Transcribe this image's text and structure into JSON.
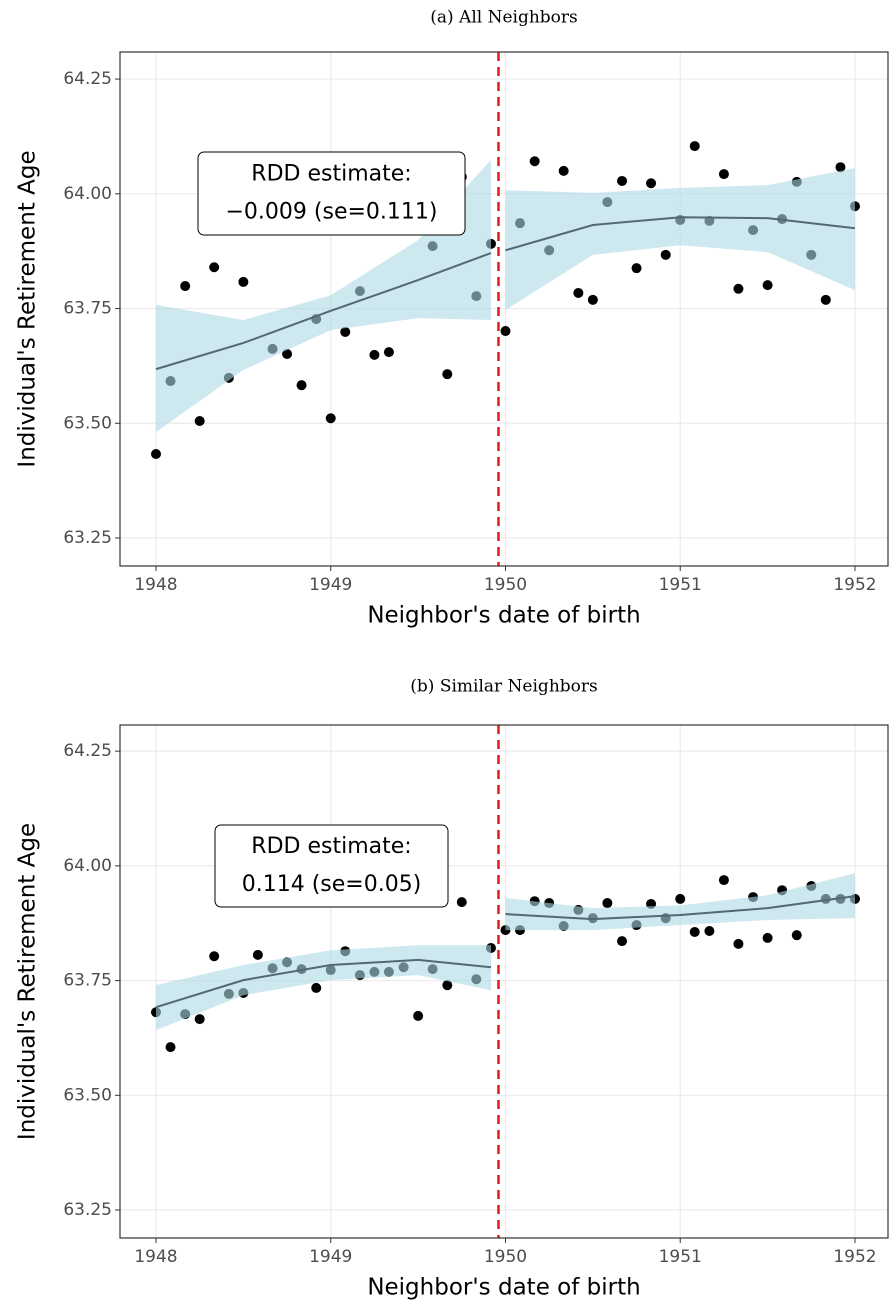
{
  "chart_data": [
    {
      "type": "scatter",
      "title": "(a) All Neighbors",
      "x_label": "Neighbor's date of birth",
      "y_label": "Individual's Retirement Age",
      "xlim": [
        1947.794,
        1952.189
      ],
      "ylim": [
        63.189,
        64.309
      ],
      "xticks": [
        1948,
        1949,
        1950,
        1951,
        1952
      ],
      "yticks": [
        63.25,
        {
          "value": 63.5,
          "label": "63.50"
        },
        {
          "value": 63.75,
          "label": "63.75"
        },
        {
          "value": 64,
          "label": "64.00"
        },
        64.25
      ],
      "grid": true,
      "cutoff": 1949.96,
      "cutoff_color": "#e41a1c",
      "annotation": [
        "RDD estimate:",
        "−0.009 (se=0.111)"
      ],
      "series": [
        {
          "color": "#000000",
          "x": [
            1948,
            1948.083,
            1948.167,
            1948.25,
            1948.333,
            1948.417,
            1948.5,
            1948.667,
            1948.75,
            1948.833,
            1948.917,
            1949,
            1949.083,
            1949.167,
            1949.25,
            1949.333,
            1949.583,
            1949.667,
            1949.75,
            1949.833,
            1949.917,
            1950,
            1950.083,
            1950.167,
            1950.25,
            1950.333,
            1950.417,
            1950.5,
            1950.583,
            1950.667,
            1950.75,
            1950.833,
            1950.917,
            1951,
            1951.083,
            1951.167,
            1951.25,
            1951.333,
            1951.417,
            1951.5,
            1951.583,
            1951.667,
            1951.75,
            1951.833,
            1951.917,
            1952
          ],
          "values": [
            63.433,
            63.592,
            63.799,
            63.505,
            63.84,
            63.599,
            63.808,
            63.662,
            63.651,
            63.583,
            63.727,
            63.511,
            63.699,
            63.788,
            63.649,
            63.655,
            63.886,
            63.607,
            64.037,
            63.777,
            63.891,
            63.701,
            63.936,
            64.071,
            63.877,
            64.05,
            63.784,
            63.769,
            63.982,
            64.028,
            63.838,
            64.023,
            63.867,
            63.943,
            64.104,
            63.941,
            64.043,
            63.793,
            63.921,
            63.801,
            63.945,
            64.026,
            63.867,
            63.769,
            64.058,
            63.973
          ]
        }
      ],
      "fits": [
        {
          "color": "#536872",
          "band_color": "#add8e6",
          "x": [
            1948,
            1948.5,
            1949,
            1949.5,
            1949.917
          ],
          "values": [
            63.618,
            63.675,
            63.745,
            63.812,
            63.871
          ],
          "upper": [
            63.758,
            63.725,
            63.779,
            63.899,
            64.074
          ],
          "lower": [
            63.481,
            63.616,
            63.703,
            63.729,
            63.725
          ]
        },
        {
          "color": "#536872",
          "band_color": "#add8e6",
          "x": [
            1950,
            1950.5,
            1951,
            1951.5,
            1952
          ],
          "values": [
            63.877,
            63.932,
            63.949,
            63.947,
            63.925
          ],
          "upper": [
            64.008,
            64.002,
            64.013,
            64.019,
            64.056
          ],
          "lower": [
            63.747,
            63.867,
            63.888,
            63.873,
            63.79
          ]
        }
      ]
    },
    {
      "type": "scatter",
      "title": "(b) Similar Neighbors",
      "x_label": "Neighbor's date of birth",
      "y_label": "Individual's Retirement Age",
      "xlim": [
        1947.794,
        1952.189
      ],
      "ylim": [
        63.189,
        64.307
      ],
      "xticks": [
        1948,
        1949,
        1950,
        1951,
        1952
      ],
      "yticks": [
        63.25,
        {
          "value": 63.5,
          "label": "63.50"
        },
        {
          "value": 63.75,
          "label": "63.75"
        },
        {
          "value": 64,
          "label": "64.00"
        },
        64.25
      ],
      "grid": true,
      "cutoff": 1949.96,
      "cutoff_color": "#e41a1c",
      "annotation": [
        "RDD estimate:",
        "0.114 (se=0.05)"
      ],
      "series": [
        {
          "color": "#000000",
          "x": [
            1948,
            1948.083,
            1948.167,
            1948.25,
            1948.333,
            1948.417,
            1948.5,
            1948.583,
            1948.667,
            1948.75,
            1948.833,
            1948.917,
            1949,
            1949.083,
            1949.167,
            1949.25,
            1949.333,
            1949.417,
            1949.5,
            1949.583,
            1949.667,
            1949.75,
            1949.833,
            1949.917,
            1950,
            1950.083,
            1950.167,
            1950.25,
            1950.333,
            1950.417,
            1950.5,
            1950.583,
            1950.667,
            1950.75,
            1950.833,
            1950.917,
            1951,
            1951.083,
            1951.167,
            1951.25,
            1951.333,
            1951.417,
            1951.5,
            1951.583,
            1951.667,
            1951.75,
            1951.833,
            1951.917,
            1952
          ],
          "values": [
            63.681,
            63.605,
            63.677,
            63.666,
            63.803,
            63.721,
            63.723,
            63.806,
            63.777,
            63.79,
            63.775,
            63.734,
            63.773,
            63.814,
            63.762,
            63.769,
            63.769,
            63.779,
            63.673,
            63.775,
            63.74,
            63.921,
            63.753,
            63.821,
            63.86,
            63.86,
            63.923,
            63.919,
            63.869,
            63.904,
            63.886,
            63.919,
            63.836,
            63.871,
            63.917,
            63.886,
            63.928,
            63.856,
            63.858,
            63.969,
            63.83,
            63.932,
            63.843,
            63.947,
            63.849,
            63.956,
            63.928,
            63.928,
            63.928
          ]
        }
      ],
      "fits": [
        {
          "color": "#536872",
          "band_color": "#add8e6",
          "x": [
            1948,
            1948.5,
            1949,
            1949.5,
            1949.917
          ],
          "values": [
            63.692,
            63.751,
            63.784,
            63.795,
            63.779
          ],
          "upper": [
            63.74,
            63.784,
            63.816,
            63.827,
            63.827
          ],
          "lower": [
            63.642,
            63.718,
            63.751,
            63.762,
            63.729
          ]
        },
        {
          "color": "#536872",
          "band_color": "#add8e6",
          "x": [
            1950,
            1950.5,
            1951,
            1951.5,
            1952
          ],
          "values": [
            63.895,
            63.884,
            63.893,
            63.908,
            63.934
          ],
          "upper": [
            63.93,
            63.908,
            63.914,
            63.936,
            63.984
          ],
          "lower": [
            63.86,
            63.86,
            63.871,
            63.882,
            63.886
          ]
        }
      ]
    }
  ]
}
